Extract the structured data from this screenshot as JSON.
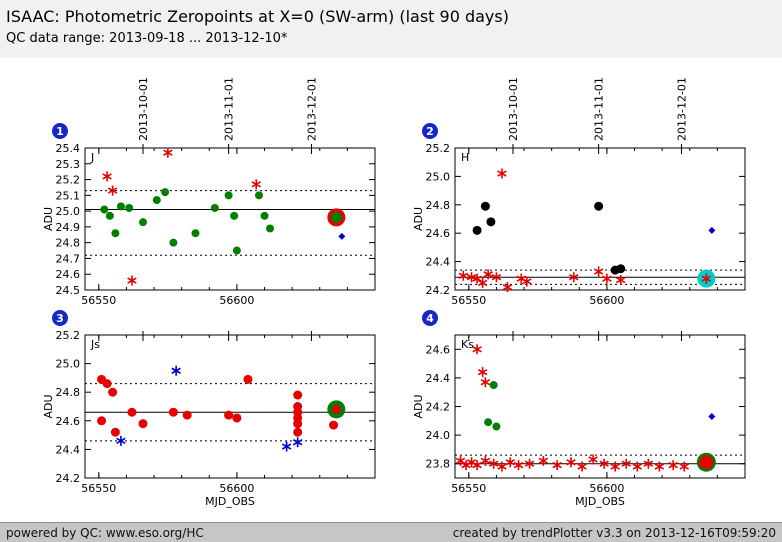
{
  "header": {
    "title": "ISAAC: Photometric Zeropoints at X=0 (SW-arm) (last 90 days)",
    "subtitle": "QC data range: 2013-09-18 ... 2013-12-10*"
  },
  "footer": {
    "left": "powered by QC: www.eso.org/HC",
    "right": "created by trendPlotter v3.3 on 2013-12-16T09:59:20"
  },
  "colors": {
    "accepted_green": "#007f00",
    "flagged_red": "#e60000",
    "reference_black": "#000000",
    "other_blue": "#0000cc",
    "highlight_cyan": "#00cccc",
    "badge_blue": "#1626c8"
  },
  "chart_data": [
    {
      "panel": "1",
      "band": "J",
      "type": "scatter",
      "ylabel": "ADU",
      "xlabel": "",
      "xlim": [
        56545,
        56650
      ],
      "ylim": [
        24.5,
        25.4
      ],
      "xticks": [
        56550,
        56600
      ],
      "yticks": [
        24.5,
        24.6,
        24.7,
        24.8,
        24.9,
        25.0,
        25.1,
        25.2,
        25.3,
        25.4
      ],
      "date_ticks": [
        {
          "mjd": 56566,
          "label": "2013-10-01"
        },
        {
          "mjd": 56597,
          "label": "2013-11-01"
        },
        {
          "mjd": 56627,
          "label": "2013-12-01"
        }
      ],
      "show_date_labels": true,
      "solid_line": 25.01,
      "dotted_lines": [
        25.13,
        24.72
      ],
      "series": [
        {
          "name": "green-circles",
          "marker": "circle",
          "color": "#007f00",
          "size": 4,
          "points": [
            [
              56552,
              25.01
            ],
            [
              56554,
              24.97
            ],
            [
              56556,
              24.86
            ],
            [
              56558,
              25.03
            ],
            [
              56561,
              25.02
            ],
            [
              56566,
              24.93
            ],
            [
              56571,
              25.07
            ],
            [
              56574,
              25.12
            ],
            [
              56577,
              24.8
            ],
            [
              56585,
              24.86
            ],
            [
              56592,
              25.02
            ],
            [
              56597,
              25.1
            ],
            [
              56599,
              24.97
            ],
            [
              56600,
              24.75
            ],
            [
              56608,
              25.1
            ],
            [
              56610,
              24.97
            ],
            [
              56612,
              24.89
            ]
          ]
        },
        {
          "name": "red-asterisks",
          "marker": "asterisk",
          "color": "#e60000",
          "size": 5,
          "points": [
            [
              56553,
              25.22
            ],
            [
              56555,
              25.13
            ],
            [
              56562,
              24.56
            ],
            [
              56575,
              25.37
            ],
            [
              56607,
              25.17
            ]
          ]
        },
        {
          "name": "blue-diamonds",
          "marker": "diamond",
          "color": "#0000cc",
          "size": 3.5,
          "points": [
            [
              56638,
              24.84
            ]
          ]
        }
      ],
      "latest": {
        "x": 56636,
        "y": 24.96,
        "halo_color": "#e60000",
        "halo_size": 9,
        "marker": "circle",
        "color": "#007f00",
        "size": 5.5
      }
    },
    {
      "panel": "2",
      "band": "H",
      "type": "scatter",
      "ylabel": "ADU",
      "xlabel": "",
      "xlim": [
        56545,
        56650
      ],
      "ylim": [
        24.2,
        25.2
      ],
      "xticks": [
        56550,
        56600
      ],
      "yticks": [
        24.2,
        24.4,
        24.6,
        24.8,
        25.0,
        25.2
      ],
      "date_ticks": [
        {
          "mjd": 56566,
          "label": "2013-10-01"
        },
        {
          "mjd": 56597,
          "label": "2013-11-01"
        },
        {
          "mjd": 56627,
          "label": "2013-12-01"
        }
      ],
      "show_date_labels": true,
      "solid_line": 24.29,
      "dotted_lines": [
        24.34,
        24.24
      ],
      "series": [
        {
          "name": "black-circles",
          "marker": "circle",
          "color": "#000000",
          "size": 4.5,
          "points": [
            [
              56553,
              24.62
            ],
            [
              56556,
              24.79
            ],
            [
              56558,
              24.68
            ],
            [
              56597,
              24.79
            ],
            [
              56603,
              24.34
            ],
            [
              56605,
              24.35
            ]
          ]
        },
        {
          "name": "red-asterisks",
          "marker": "asterisk",
          "color": "#e60000",
          "size": 5,
          "points": [
            [
              56548,
              24.3
            ],
            [
              56551,
              24.29
            ],
            [
              56553,
              24.28
            ],
            [
              56555,
              24.25
            ],
            [
              56557,
              24.31
            ],
            [
              56560,
              24.29
            ],
            [
              56562,
              25.02
            ],
            [
              56564,
              24.22
            ],
            [
              56569,
              24.28
            ],
            [
              56571,
              24.26
            ],
            [
              56588,
              24.29
            ],
            [
              56597,
              24.33
            ],
            [
              56600,
              24.28
            ],
            [
              56605,
              24.27
            ]
          ]
        },
        {
          "name": "blue-diamonds",
          "marker": "diamond",
          "color": "#0000cc",
          "size": 3.5,
          "points": [
            [
              56638,
              24.62
            ]
          ]
        }
      ],
      "latest": {
        "x": 56636,
        "y": 24.28,
        "halo_color": "#00cccc",
        "halo_size": 9,
        "marker": "asterisk",
        "color": "#e60000",
        "size": 5
      }
    },
    {
      "panel": "3",
      "band": "Js",
      "type": "scatter",
      "ylabel": "ADU",
      "xlabel": "MJD_OBS",
      "xlim": [
        56545,
        56650
      ],
      "ylim": [
        24.2,
        25.2
      ],
      "xticks": [
        56550,
        56600
      ],
      "yticks": [
        24.2,
        24.4,
        24.6,
        24.8,
        25.0,
        25.2
      ],
      "date_ticks": [
        {
          "mjd": 56566,
          "label": "2013-10-01"
        },
        {
          "mjd": 56597,
          "label": "2013-11-01"
        },
        {
          "mjd": 56627,
          "label": "2013-12-01"
        }
      ],
      "show_date_labels": false,
      "solid_line": 24.66,
      "dotted_lines": [
        24.86,
        24.46
      ],
      "series": [
        {
          "name": "red-circles",
          "marker": "circle",
          "color": "#e60000",
          "size": 4.5,
          "points": [
            [
              56551,
              24.89
            ],
            [
              56553,
              24.86
            ],
            [
              56555,
              24.8
            ],
            [
              56551,
              24.6
            ],
            [
              56556,
              24.52
            ],
            [
              56562,
              24.66
            ],
            [
              56566,
              24.58
            ],
            [
              56577,
              24.66
            ],
            [
              56582,
              24.64
            ],
            [
              56597,
              24.64
            ],
            [
              56604,
              24.89
            ],
            [
              56600,
              24.62
            ],
            [
              56622,
              24.78
            ],
            [
              56622,
              24.7
            ],
            [
              56622,
              24.66
            ],
            [
              56622,
              24.62
            ],
            [
              56622,
              24.58
            ],
            [
              56622,
              24.52
            ],
            [
              56635,
              24.57
            ]
          ]
        },
        {
          "name": "blue-asterisks",
          "marker": "asterisk",
          "color": "#0000cc",
          "size": 5,
          "points": [
            [
              56558,
              24.46
            ],
            [
              56578,
              24.95
            ],
            [
              56618,
              24.42
            ],
            [
              56622,
              24.45
            ]
          ]
        }
      ],
      "latest": {
        "x": 56636,
        "y": 24.68,
        "halo_color": "#007f00",
        "halo_size": 9,
        "marker": "circle",
        "color": "#e60000",
        "size": 4.5
      }
    },
    {
      "panel": "4",
      "band": "Ks",
      "type": "scatter",
      "ylabel": "ADU",
      "xlabel": "MJD_OBS",
      "xlim": [
        56545,
        56650
      ],
      "ylim": [
        23.7,
        24.7
      ],
      "xticks": [
        56550,
        56600
      ],
      "yticks": [
        23.8,
        24.0,
        24.2,
        24.4,
        24.6
      ],
      "date_ticks": [
        {
          "mjd": 56566,
          "label": "2013-10-01"
        },
        {
          "mjd": 56597,
          "label": "2013-11-01"
        },
        {
          "mjd": 56627,
          "label": "2013-12-01"
        }
      ],
      "show_date_labels": false,
      "solid_line": 23.8,
      "dotted_lines": [
        23.86
      ],
      "series": [
        {
          "name": "red-asterisks",
          "marker": "asterisk",
          "color": "#e60000",
          "size": 5,
          "points": [
            [
              56553,
              24.6
            ],
            [
              56555,
              24.44
            ],
            [
              56556,
              24.37
            ],
            [
              56547,
              23.82
            ],
            [
              56549,
              23.79
            ],
            [
              56551,
              23.81
            ],
            [
              56553,
              23.79
            ],
            [
              56556,
              23.82
            ],
            [
              56559,
              23.8
            ],
            [
              56562,
              23.78
            ],
            [
              56565,
              23.81
            ],
            [
              56568,
              23.79
            ],
            [
              56572,
              23.8
            ],
            [
              56577,
              23.82
            ],
            [
              56582,
              23.79
            ],
            [
              56587,
              23.81
            ],
            [
              56591,
              23.78
            ],
            [
              56595,
              23.83
            ],
            [
              56599,
              23.8
            ],
            [
              56603,
              23.78
            ],
            [
              56607,
              23.8
            ],
            [
              56611,
              23.78
            ],
            [
              56615,
              23.8
            ],
            [
              56619,
              23.78
            ],
            [
              56624,
              23.79
            ],
            [
              56628,
              23.78
            ]
          ]
        },
        {
          "name": "green-circles",
          "marker": "circle",
          "color": "#007f00",
          "size": 4,
          "points": [
            [
              56559,
              24.35
            ],
            [
              56557,
              24.09
            ],
            [
              56560,
              24.06
            ]
          ]
        },
        {
          "name": "blue-diamonds",
          "marker": "diamond",
          "color": "#0000cc",
          "size": 3.5,
          "points": [
            [
              56638,
              24.13
            ]
          ]
        }
      ],
      "latest": {
        "x": 56636,
        "y": 23.81,
        "halo_color": "#007f00",
        "halo_size": 9.5,
        "marker": "circle",
        "color": "#e60000",
        "size": 7
      }
    }
  ]
}
